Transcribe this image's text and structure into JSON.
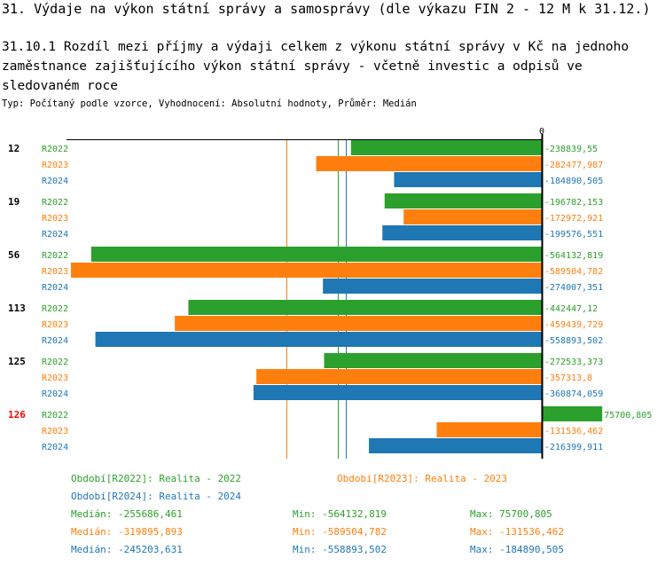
{
  "header": {
    "title": "31. Výdaje na výkon státní správy a samosprávy (dle výkazu FIN 2 - 12 M k 31.12.)",
    "subtitle": "31.10.1 Rozdíl mezi příjmy a výdaji celkem z výkonu státní správy v Kč na jednoho zaměstnance zajišťujícího výkon státní správy - včetně investic a odpisů ve sledovaném roce",
    "type_line": "Typ: Počítaný podle vzorce, Vyhodnocení: Absolutní hodnoty, Průměr: Medián"
  },
  "colors": {
    "R2022": "#2ca02c",
    "R2023": "#ff7f0e",
    "R2024": "#1f77b4",
    "highlight": "#ff0000"
  },
  "chart_data": {
    "type": "bar",
    "orientation": "horizontal",
    "zero_label": "0",
    "xlim": [
      -600000,
      80000
    ],
    "groups": [
      {
        "label": "12",
        "highlight": false,
        "bars": [
          {
            "series": "R2022",
            "value": -238839.55,
            "label": "-238839,55"
          },
          {
            "series": "R2023",
            "value": -282477.987,
            "label": "-282477,987"
          },
          {
            "series": "R2024",
            "value": -184890.505,
            "label": "-184890,505"
          }
        ]
      },
      {
        "label": "19",
        "highlight": false,
        "bars": [
          {
            "series": "R2022",
            "value": -196782.153,
            "label": "-196782,153"
          },
          {
            "series": "R2023",
            "value": -172972.921,
            "label": "-172972,921"
          },
          {
            "series": "R2024",
            "value": -199576.551,
            "label": "-199576,551"
          }
        ]
      },
      {
        "label": "56",
        "highlight": false,
        "bars": [
          {
            "series": "R2022",
            "value": -564132.819,
            "label": "-564132,819"
          },
          {
            "series": "R2023",
            "value": -589504.782,
            "label": "-589504,782"
          },
          {
            "series": "R2024",
            "value": -274007.351,
            "label": "-274007,351"
          }
        ]
      },
      {
        "label": "113",
        "highlight": false,
        "bars": [
          {
            "series": "R2022",
            "value": -442447.12,
            "label": "-442447,12"
          },
          {
            "series": "R2023",
            "value": -459439.729,
            "label": "-459439,729"
          },
          {
            "series": "R2024",
            "value": -558893.502,
            "label": "-558893,502"
          }
        ]
      },
      {
        "label": "125",
        "highlight": false,
        "bars": [
          {
            "series": "R2022",
            "value": -272533.373,
            "label": "-272533,373"
          },
          {
            "series": "R2023",
            "value": -357313.8,
            "label": "-357313,8"
          },
          {
            "series": "R2024",
            "value": -360874.059,
            "label": "-360874,059"
          }
        ]
      },
      {
        "label": "126",
        "highlight": true,
        "bars": [
          {
            "series": "R2022",
            "value": 75700.805,
            "label": "75700,805"
          },
          {
            "series": "R2023",
            "value": -131536.462,
            "label": "-131536,462"
          },
          {
            "series": "R2024",
            "value": -216399.911,
            "label": "-216399,911"
          }
        ]
      }
    ],
    "reference_lines": [
      {
        "series": "R2023",
        "value": -319895.893
      },
      {
        "series": "R2022",
        "value": -255686.461
      },
      {
        "series": "R2024",
        "value": -245203.631
      }
    ]
  },
  "legend": {
    "periods": [
      {
        "series": "R2022",
        "text": "Období[R2022]: Realita - 2022"
      },
      {
        "series": "R2023",
        "text": "Období[R2023]: Realita - 2023"
      },
      {
        "series": "R2024",
        "text": "Období[R2024]: Realita - 2024"
      }
    ],
    "stats": [
      {
        "series": "R2022",
        "median": "Medián: -255686,461",
        "min": "Min: -564132,819",
        "max": "Max: 75700,805"
      },
      {
        "series": "R2023",
        "median": "Medián: -319895,893",
        "min": "Min: -589504,782",
        "max": "Max: -131536,462"
      },
      {
        "series": "R2024",
        "median": "Medián: -245203,631",
        "min": "Min: -558893,502",
        "max": "Max: -184890,505"
      }
    ]
  }
}
